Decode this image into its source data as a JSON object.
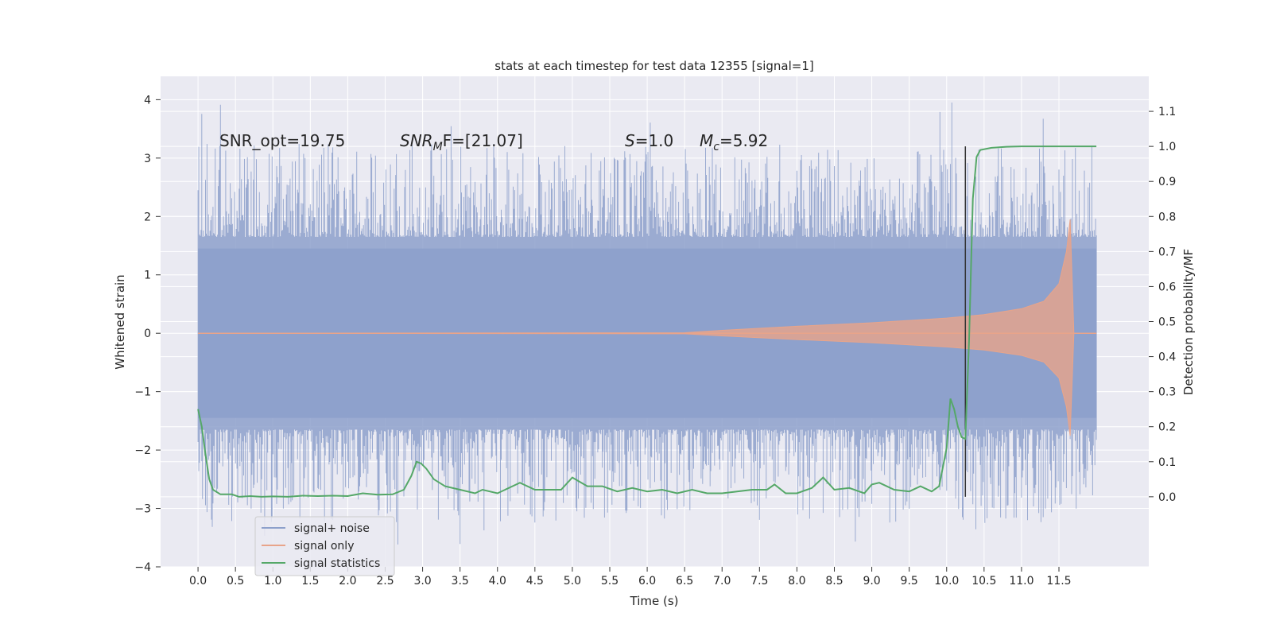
{
  "chart_data": {
    "type": "line",
    "title": "stats at each timestep for test data 12355 [signal=1]",
    "xlabel": "Time (s)",
    "ylabel": "Whitened strain",
    "y2label": "Detection probability/MF",
    "xlim": [
      -0.5,
      12.7
    ],
    "ylim": [
      -4.0,
      4.4
    ],
    "y2lim": [
      -0.2,
      1.2
    ],
    "x_ticks": [
      "0.0",
      "0.5",
      "1.0",
      "1.5",
      "2.0",
      "2.5",
      "3.0",
      "3.5",
      "4.0",
      "4.5",
      "5.0",
      "5.5",
      "6.0",
      "6.5",
      "7.0",
      "7.5",
      "8.0",
      "8.5",
      "9.0",
      "9.5",
      "10.0",
      "10.5",
      "11.0",
      "11.5"
    ],
    "y_ticks": [
      "−4",
      "−3",
      "−2",
      "−1",
      "0",
      "1",
      "2",
      "3",
      "4"
    ],
    "y2_ticks": [
      "0.0",
      "0.1",
      "0.2",
      "0.3",
      "0.4",
      "0.5",
      "0.6",
      "0.7",
      "0.8",
      "0.9",
      "1.0",
      "1.1"
    ],
    "grid": true,
    "legend_position": "lower-left",
    "annotations": {
      "snr_opt": "SNR_opt=19.75",
      "snr_mf": "SNR_M F=[21.07]",
      "snr_mf_base": "SNR",
      "snr_mf_sub": "M",
      "snr_mf_rest": "F=[21.07]",
      "s_var": "S",
      "s_val": "=1.0",
      "mc_var": "M",
      "mc_sub": "c",
      "mc_val": "=5.92"
    },
    "vline_x": 10.25,
    "series": [
      {
        "name": "signal+ noise",
        "color": "#8da0cb",
        "x_range": [
          0.0,
          12.0
        ],
        "envelope_core": 1.45,
        "envelope_peak_max": 4.1,
        "envelope_peak_min": -3.65
      },
      {
        "name": "signal only",
        "color": "#e8a48a",
        "amplitude_points": [
          [
            0.0,
            0.0
          ],
          [
            6.5,
            0.01
          ],
          [
            7.0,
            0.05
          ],
          [
            8.0,
            0.12
          ],
          [
            9.0,
            0.18
          ],
          [
            10.0,
            0.26
          ],
          [
            10.5,
            0.32
          ],
          [
            11.0,
            0.42
          ],
          [
            11.3,
            0.55
          ],
          [
            11.5,
            0.85
          ],
          [
            11.6,
            1.4
          ],
          [
            11.65,
            1.95
          ],
          [
            11.7,
            0.0
          ],
          [
            12.0,
            0.0
          ]
        ]
      },
      {
        "name": "signal statistics",
        "color": "#55a868",
        "axis": "right",
        "points": [
          [
            0.0,
            0.25
          ],
          [
            0.05,
            0.2
          ],
          [
            0.1,
            0.12
          ],
          [
            0.15,
            0.05
          ],
          [
            0.2,
            0.02
          ],
          [
            0.3,
            0.007
          ],
          [
            0.45,
            0.007
          ],
          [
            0.55,
            0.0
          ],
          [
            0.7,
            0.002
          ],
          [
            0.85,
            0.0
          ],
          [
            1.0,
            0.001
          ],
          [
            1.2,
            0.0
          ],
          [
            1.4,
            0.003
          ],
          [
            1.6,
            0.002
          ],
          [
            1.8,
            0.003
          ],
          [
            2.0,
            0.002
          ],
          [
            2.2,
            0.01
          ],
          [
            2.4,
            0.006
          ],
          [
            2.6,
            0.007
          ],
          [
            2.75,
            0.02
          ],
          [
            2.85,
            0.06
          ],
          [
            2.92,
            0.1
          ],
          [
            2.98,
            0.095
          ],
          [
            3.05,
            0.08
          ],
          [
            3.15,
            0.05
          ],
          [
            3.3,
            0.03
          ],
          [
            3.5,
            0.02
          ],
          [
            3.7,
            0.01
          ],
          [
            3.8,
            0.02
          ],
          [
            4.0,
            0.01
          ],
          [
            4.2,
            0.03
          ],
          [
            4.3,
            0.04
          ],
          [
            4.5,
            0.02
          ],
          [
            4.7,
            0.02
          ],
          [
            4.85,
            0.02
          ],
          [
            5.0,
            0.055
          ],
          [
            5.2,
            0.03
          ],
          [
            5.4,
            0.03
          ],
          [
            5.6,
            0.015
          ],
          [
            5.8,
            0.025
          ],
          [
            6.0,
            0.015
          ],
          [
            6.2,
            0.02
          ],
          [
            6.4,
            0.01
          ],
          [
            6.6,
            0.02
          ],
          [
            6.8,
            0.01
          ],
          [
            7.0,
            0.01
          ],
          [
            7.2,
            0.015
          ],
          [
            7.4,
            0.02
          ],
          [
            7.6,
            0.02
          ],
          [
            7.7,
            0.035
          ],
          [
            7.85,
            0.01
          ],
          [
            8.0,
            0.01
          ],
          [
            8.2,
            0.025
          ],
          [
            8.35,
            0.055
          ],
          [
            8.5,
            0.02
          ],
          [
            8.7,
            0.025
          ],
          [
            8.9,
            0.01
          ],
          [
            9.0,
            0.035
          ],
          [
            9.1,
            0.04
          ],
          [
            9.3,
            0.02
          ],
          [
            9.5,
            0.015
          ],
          [
            9.65,
            0.03
          ],
          [
            9.8,
            0.015
          ],
          [
            9.9,
            0.03
          ],
          [
            10.0,
            0.14
          ],
          [
            10.05,
            0.28
          ],
          [
            10.1,
            0.25
          ],
          [
            10.15,
            0.2
          ],
          [
            10.2,
            0.17
          ],
          [
            10.25,
            0.165
          ],
          [
            10.3,
            0.45
          ],
          [
            10.35,
            0.85
          ],
          [
            10.4,
            0.97
          ],
          [
            10.45,
            0.99
          ],
          [
            10.6,
            0.996
          ],
          [
            10.8,
            0.999
          ],
          [
            11.0,
            1.0
          ],
          [
            12.0,
            1.0
          ]
        ]
      }
    ]
  }
}
